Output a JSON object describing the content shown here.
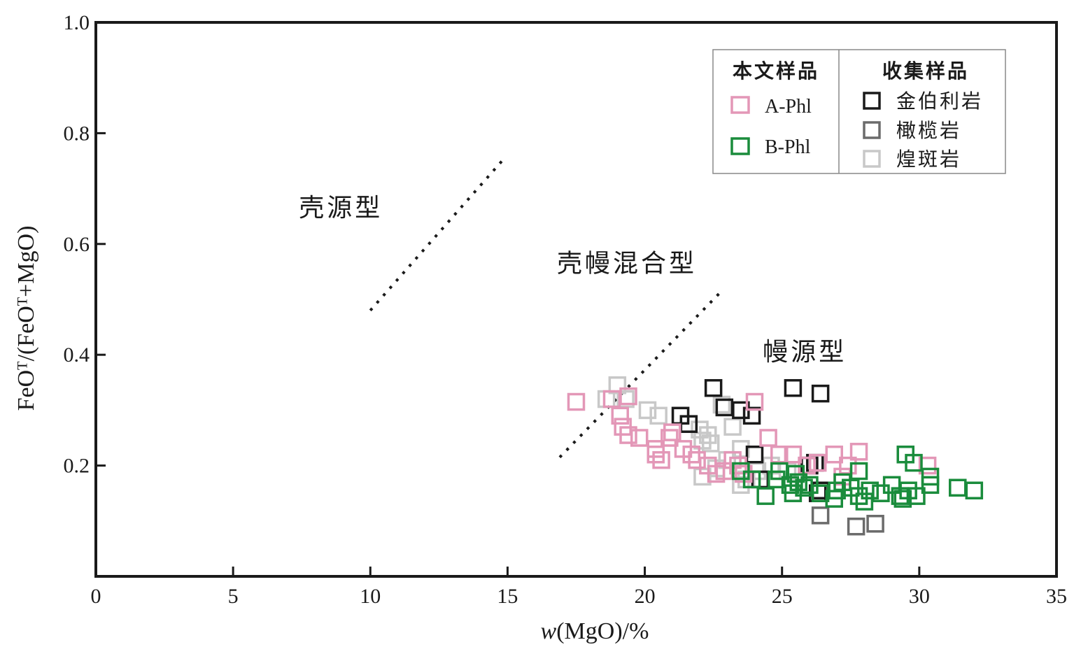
{
  "chart_data": {
    "type": "scatter",
    "title": "",
    "xlabel_prefix": "w",
    "xlabel_suffix": "(MgO)/%",
    "ylabel": "FeOᵀ/(FeOᵀ+MgO)",
    "xlim": [
      0,
      35
    ],
    "ylim": [
      0,
      1.0
    ],
    "x_ticks": [
      0,
      5,
      10,
      15,
      20,
      25,
      30,
      35
    ],
    "x_tick_labels": [
      "0",
      "5",
      "10",
      "15",
      "20",
      "25",
      "30",
      "35"
    ],
    "y_ticks": [
      0.2,
      0.4,
      0.6,
      0.8,
      1.0
    ],
    "y_tick_labels": [
      "0.2",
      "0.4",
      "0.6",
      "0.8",
      "1.0"
    ],
    "grid": false,
    "region_labels": [
      {
        "text": "壳源型",
        "x": 7.4,
        "y": 0.65
      },
      {
        "text": "壳幔混合型",
        "x": 16.8,
        "y": 0.55
      },
      {
        "text": "幔源型",
        "x": 24.3,
        "y": 0.39
      }
    ],
    "boundary_lines": [
      {
        "name": "crust-mixed",
        "x": [
          10,
          14.8
        ],
        "y": [
          0.48,
          0.75
        ]
      },
      {
        "name": "mixed-mantle",
        "x": [
          16.9,
          22.7
        ],
        "y": [
          0.215,
          0.51
        ]
      }
    ],
    "legend": {
      "position": "top-right",
      "group1_title": "本文样品",
      "group2_title": "收集样品",
      "entries": [
        {
          "series": "A-Phl",
          "label": "A-Phl",
          "color": "#e397b7"
        },
        {
          "series": "B-Phl",
          "label": "B-Phl",
          "color": "#1a8c3c"
        },
        {
          "series": "kimberlite",
          "label": "金伯利岩",
          "color": "#1a1a1a"
        },
        {
          "series": "peridotite",
          "label": "橄榄岩",
          "color": "#6b6b6b"
        },
        {
          "series": "lamprophyre",
          "label": "煌斑岩",
          "color": "#c8c8c8"
        }
      ]
    },
    "series": [
      {
        "name": "煌斑岩",
        "color": "#c8c8c8",
        "points": [
          [
            18.6,
            0.32
          ],
          [
            19.0,
            0.345
          ],
          [
            19.3,
            0.32
          ],
          [
            20.1,
            0.3
          ],
          [
            20.5,
            0.29
          ],
          [
            21.3,
            0.29
          ],
          [
            21.6,
            0.275
          ],
          [
            22.0,
            0.265
          ],
          [
            22.3,
            0.255
          ],
          [
            22.1,
            0.245
          ],
          [
            22.4,
            0.24
          ],
          [
            22.8,
            0.31
          ],
          [
            23.2,
            0.27
          ],
          [
            23.5,
            0.23
          ],
          [
            23.0,
            0.21
          ],
          [
            22.6,
            0.195
          ],
          [
            22.1,
            0.18
          ],
          [
            23.7,
            0.175
          ],
          [
            23.5,
            0.165
          ],
          [
            24.1,
            0.19
          ],
          [
            24.6,
            0.2
          ],
          [
            25.2,
            0.19
          ]
        ]
      },
      {
        "name": "金伯利岩",
        "color": "#1a1a1a",
        "points": [
          [
            21.3,
            0.29
          ],
          [
            21.6,
            0.275
          ],
          [
            22.5,
            0.34
          ],
          [
            22.9,
            0.305
          ],
          [
            23.5,
            0.3
          ],
          [
            23.9,
            0.29
          ],
          [
            24.0,
            0.22
          ],
          [
            24.2,
            0.175
          ],
          [
            25.4,
            0.34
          ],
          [
            26.4,
            0.33
          ],
          [
            26.0,
            0.2
          ],
          [
            26.2,
            0.205
          ],
          [
            26.3,
            0.15
          ],
          [
            26.4,
            0.155
          ]
        ]
      },
      {
        "name": "橄榄岩",
        "color": "#6b6b6b",
        "points": [
          [
            26.4,
            0.11
          ],
          [
            27.7,
            0.09
          ],
          [
            28.4,
            0.095
          ]
        ]
      },
      {
        "name": "A-Phl",
        "color": "#e397b7",
        "points": [
          [
            17.5,
            0.315
          ],
          [
            18.8,
            0.32
          ],
          [
            19.1,
            0.29
          ],
          [
            19.4,
            0.325
          ],
          [
            19.2,
            0.27
          ],
          [
            19.4,
            0.255
          ],
          [
            19.8,
            0.25
          ],
          [
            20.4,
            0.23
          ],
          [
            20.4,
            0.22
          ],
          [
            20.6,
            0.21
          ],
          [
            20.9,
            0.25
          ],
          [
            21.0,
            0.26
          ],
          [
            21.4,
            0.23
          ],
          [
            21.7,
            0.22
          ],
          [
            21.9,
            0.21
          ],
          [
            22.3,
            0.2
          ],
          [
            22.6,
            0.185
          ],
          [
            22.9,
            0.19
          ],
          [
            23.2,
            0.21
          ],
          [
            23.4,
            0.2
          ],
          [
            23.6,
            0.185
          ],
          [
            24.0,
            0.315
          ],
          [
            24.5,
            0.25
          ],
          [
            24.9,
            0.22
          ],
          [
            25.4,
            0.22
          ],
          [
            25.9,
            0.2
          ],
          [
            26.3,
            0.205
          ],
          [
            26.9,
            0.22
          ],
          [
            27.2,
            0.18
          ],
          [
            27.4,
            0.2
          ],
          [
            27.8,
            0.225
          ],
          [
            30.3,
            0.2
          ]
        ]
      },
      {
        "name": "B-Phl",
        "color": "#1a8c3c",
        "points": [
          [
            23.5,
            0.19
          ],
          [
            23.9,
            0.175
          ],
          [
            24.4,
            0.145
          ],
          [
            24.8,
            0.175
          ],
          [
            24.9,
            0.19
          ],
          [
            25.3,
            0.165
          ],
          [
            25.4,
            0.15
          ],
          [
            25.5,
            0.185
          ],
          [
            25.6,
            0.17
          ],
          [
            25.8,
            0.16
          ],
          [
            26.0,
            0.165
          ],
          [
            26.4,
            0.15
          ],
          [
            26.9,
            0.14
          ],
          [
            27.0,
            0.155
          ],
          [
            27.2,
            0.17
          ],
          [
            27.5,
            0.16
          ],
          [
            27.8,
            0.145
          ],
          [
            27.8,
            0.19
          ],
          [
            28.0,
            0.135
          ],
          [
            28.2,
            0.155
          ],
          [
            28.6,
            0.15
          ],
          [
            29.0,
            0.165
          ],
          [
            29.3,
            0.145
          ],
          [
            29.4,
            0.14
          ],
          [
            29.5,
            0.22
          ],
          [
            29.6,
            0.155
          ],
          [
            29.8,
            0.205
          ],
          [
            29.9,
            0.145
          ],
          [
            30.4,
            0.18
          ],
          [
            30.4,
            0.165
          ],
          [
            31.4,
            0.16
          ],
          [
            32.0,
            0.155
          ]
        ]
      }
    ]
  }
}
